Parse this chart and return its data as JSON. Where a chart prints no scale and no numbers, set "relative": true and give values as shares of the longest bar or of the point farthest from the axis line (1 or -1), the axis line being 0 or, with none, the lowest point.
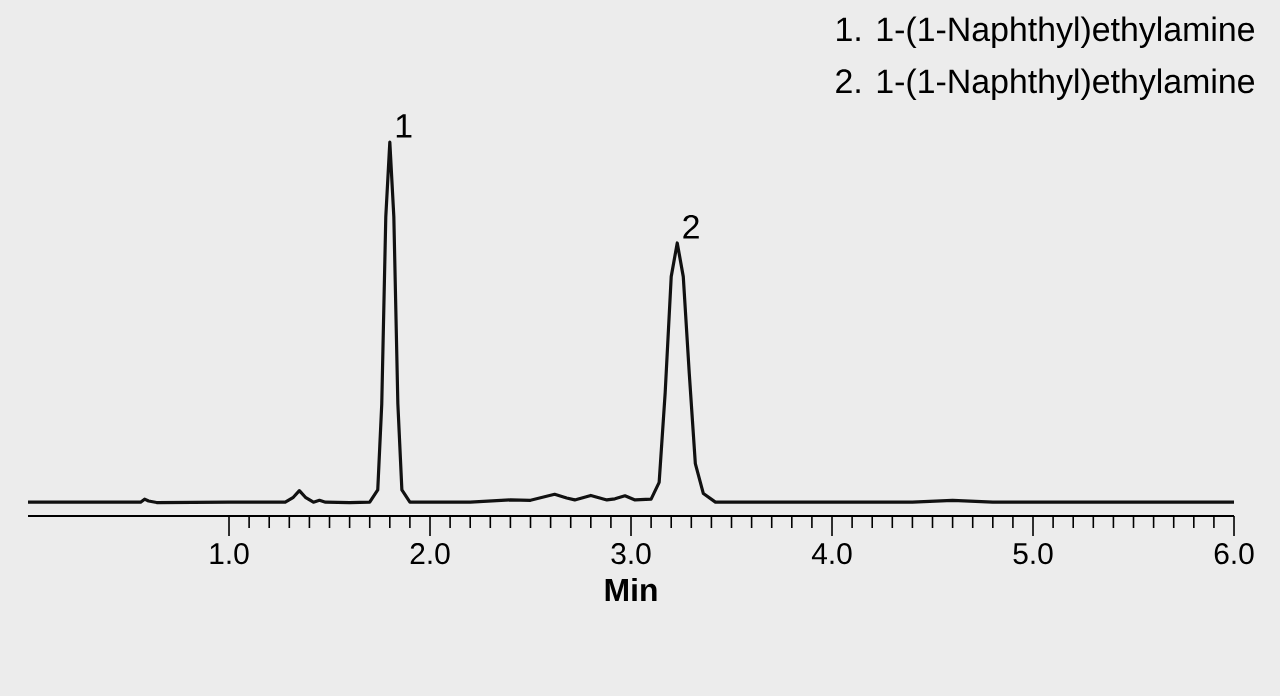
{
  "chart_data": {
    "type": "line",
    "relative": true,
    "xlabel": "Min",
    "xlim": [
      0,
      6
    ],
    "xticks": [
      {
        "value": 1,
        "label": "1.0"
      },
      {
        "value": 2,
        "label": "2.0"
      },
      {
        "value": 3,
        "label": "3.0"
      },
      {
        "value": 4,
        "label": "4.0"
      },
      {
        "value": 5,
        "label": "5.0"
      },
      {
        "value": 6,
        "label": "6.0"
      }
    ],
    "series": [
      {
        "color": "#111111",
        "x": [
          0,
          0.5,
          0.56,
          0.58,
          0.6,
          0.64,
          1.0,
          1.28,
          1.32,
          1.35,
          1.38,
          1.42,
          1.45,
          1.48,
          1.6,
          1.7,
          1.74,
          1.76,
          1.78,
          1.8,
          1.82,
          1.84,
          1.86,
          1.9,
          2.0,
          2.2,
          2.4,
          2.5,
          2.56,
          2.62,
          2.68,
          2.72,
          2.8,
          2.88,
          2.92,
          2.97,
          3.02,
          3.1,
          3.14,
          3.17,
          3.2,
          3.23,
          3.26,
          3.29,
          3.32,
          3.36,
          3.42,
          3.6,
          4.4,
          4.6,
          4.8,
          6.0
        ],
        "values": [
          0.037,
          0.037,
          0.037,
          0.045,
          0.04,
          0.036,
          0.037,
          0.037,
          0.05,
          0.068,
          0.05,
          0.037,
          0.042,
          0.037,
          0.036,
          0.037,
          0.07,
          0.3,
          0.8,
          1,
          0.8,
          0.3,
          0.07,
          0.037,
          0.037,
          0.037,
          0.043,
          0.042,
          0.05,
          0.058,
          0.048,
          0.043,
          0.055,
          0.043,
          0.046,
          0.054,
          0.043,
          0.045,
          0.09,
          0.33,
          0.64,
          0.73,
          0.64,
          0.38,
          0.14,
          0.06,
          0.037,
          0.037,
          0.037,
          0.042,
          0.037,
          0.037
        ]
      }
    ],
    "annotations": [
      "1. 1-(1-Naphthyl)ethylamine",
      "2. 1-(1-Naphthyl)ethylamine",
      {
        "text": "1",
        "x": 1.8,
        "y": 1
      },
      {
        "text": "2",
        "x": 3.23,
        "y": 0.73
      }
    ]
  }
}
